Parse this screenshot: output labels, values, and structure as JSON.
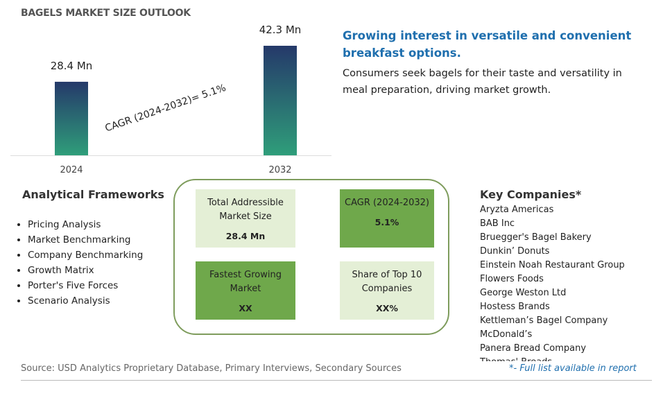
{
  "header": {
    "title": "BAGELS MARKET SIZE OUTLOOK"
  },
  "chart_data": {
    "type": "bar",
    "categories": [
      "2024",
      "2032"
    ],
    "values": [
      28.4,
      42.3
    ],
    "value_labels": [
      "28.4 Mn",
      "42.3 Mn"
    ],
    "annotation": "CAGR (2024-2032)=  5.1%"
  },
  "highlight": {
    "title": "Growing interest in versatile and convenient breakfast options.",
    "text": "Consumers seek bagels for their taste and versatility in meal preparation, driving market growth."
  },
  "frameworks": {
    "title": "Analytical Frameworks",
    "items": [
      "Pricing Analysis",
      "Market Benchmarking",
      "Company Benchmarking",
      "Growth Matrix",
      "Porter's Five Forces",
      "Scenario Analysis"
    ]
  },
  "metrics": [
    {
      "label": "Total Addressible Market Size",
      "value": "28.4 Mn"
    },
    {
      "label": "CAGR (2024-2032)",
      "value": "5.1%"
    },
    {
      "label": "Fastest Growing Market",
      "value": "XX"
    },
    {
      "label": "Share of Top 10 Companies",
      "value": "XX%"
    }
  ],
  "companies": {
    "title": "Key Companies*",
    "items": [
      "Aryzta Americas",
      "BAB Inc",
      "Bruegger's Bagel Bakery",
      "Dunkin’ Donuts",
      "Einstein Noah Restaurant Group",
      "Flowers Foods",
      "George Weston Ltd",
      "Hostess Brands",
      "Kettleman’s Bagel Company",
      "McDonald’s",
      "Panera Bread Company",
      "Thomas' Breads"
    ]
  },
  "footer": {
    "source": "Source: USD Analytics Proprietary Database, Primary Interviews, Secondary Sources",
    "note": "*- Full list available in report"
  }
}
